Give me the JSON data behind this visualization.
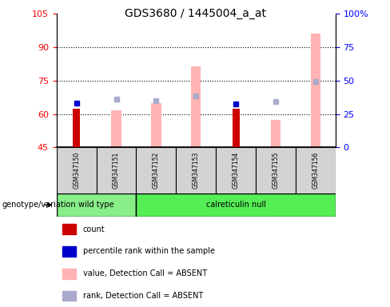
{
  "title": "GDS3680 / 1445004_a_at",
  "samples": [
    "GSM347150",
    "GSM347151",
    "GSM347152",
    "GSM347153",
    "GSM347154",
    "GSM347155",
    "GSM347156"
  ],
  "ylim_left": [
    45,
    105
  ],
  "ylim_right": [
    0,
    100
  ],
  "yticks_left": [
    45,
    60,
    75,
    90,
    105
  ],
  "yticks_right": [
    0,
    25,
    50,
    75,
    100
  ],
  "ytick_labels_right": [
    "0",
    "25",
    "50",
    "75",
    "100%"
  ],
  "red_bars": {
    "GSM347150": 62.5,
    "GSM347154": 62.5
  },
  "blue_squares": {
    "GSM347150": 65.0,
    "GSM347154": 64.5
  },
  "pink_bars": {
    "GSM347151": 61.5,
    "GSM347152": 65.0,
    "GSM347153": 81.5,
    "GSM347155": 57.5,
    "GSM347156": 96.0
  },
  "lavender_squares": {
    "GSM347151": 66.5,
    "GSM347152": 66.0,
    "GSM347153": 68.0,
    "GSM347155": 65.5,
    "GSM347156": 74.5
  },
  "bar_bottom": 45,
  "red_color": "#CC0000",
  "pink_color": "#FFB3B3",
  "blue_color": "#0000CC",
  "lavender_color": "#AAAACC",
  "wt_color": "#88EE88",
  "cn_color": "#55EE55",
  "legend_items": [
    {
      "label": "count",
      "color": "#CC0000"
    },
    {
      "label": "percentile rank within the sample",
      "color": "#0000CC"
    },
    {
      "label": "value, Detection Call = ABSENT",
      "color": "#FFB3B3"
    },
    {
      "label": "rank, Detection Call = ABSENT",
      "color": "#AAAACC"
    }
  ]
}
